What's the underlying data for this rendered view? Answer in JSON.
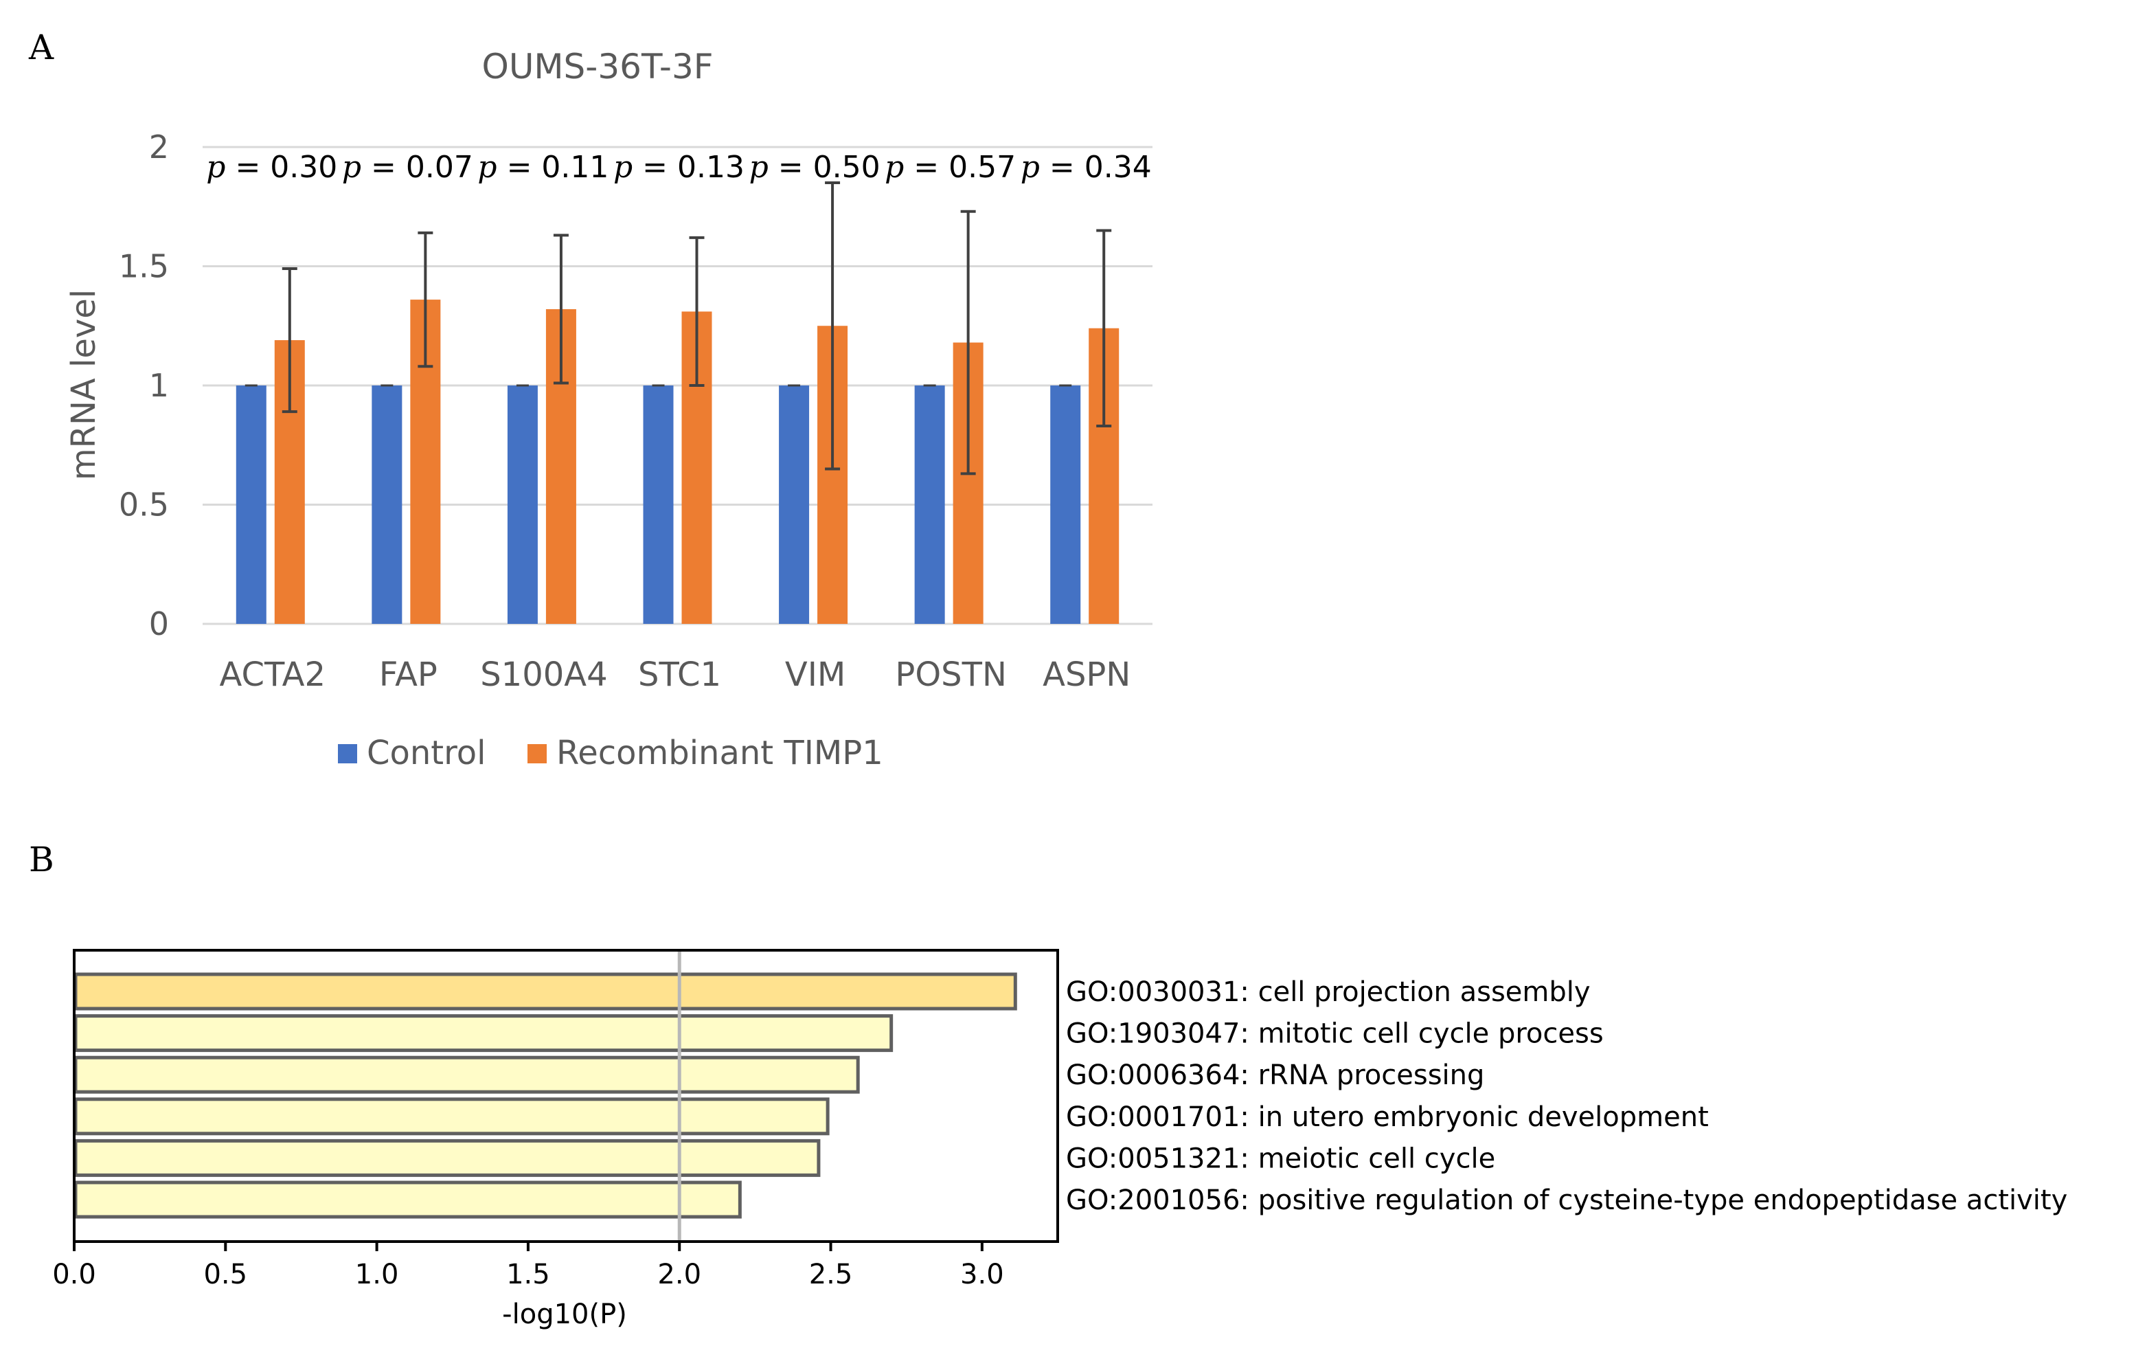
{
  "panels": {
    "a_label": "A",
    "b_label": "B"
  },
  "colors": {
    "control": "#4472C4",
    "timp1": "#ED7D31",
    "gridline": "#D9D9D9",
    "axis_text": "#595959",
    "errorbar": "#404040",
    "bar_top": "#FFE28F",
    "bar_other": "#FFFCC8",
    "bar_stroke": "#606060",
    "refline": "#B8B8B8"
  },
  "chart_data": [
    {
      "type": "bar",
      "title": "OUMS-36T-3F",
      "xlabel": "",
      "ylabel": "mRNA level",
      "ylim": [
        0,
        2
      ],
      "yticks": [
        "0",
        "0.5",
        "1",
        "1.5",
        "2"
      ],
      "grid": true,
      "legend_position": "bottom",
      "categories": [
        "ACTA2",
        "FAP",
        "S100A4",
        "STC1",
        "VIM",
        "POSTN",
        "ASPN"
      ],
      "series": [
        {
          "name": "Control",
          "values": [
            1,
            1,
            1,
            1,
            1,
            1,
            1
          ]
        },
        {
          "name": "Recombinant TIMP1",
          "values": [
            1.19,
            1.36,
            1.32,
            1.31,
            1.25,
            1.18,
            1.24
          ],
          "error": [
            0.3,
            0.28,
            0.31,
            0.31,
            0.6,
            0.55,
            0.41
          ]
        }
      ],
      "pvalues": [
        {
          "p": "p",
          "eq": " = 0.30"
        },
        {
          "p": "p",
          "eq": " = 0.07"
        },
        {
          "p": "p",
          "eq": " = 0.11"
        },
        {
          "p": "p",
          "eq": " = 0.13"
        },
        {
          "p": "p",
          "eq": " = 0.50"
        },
        {
          "p": "p",
          "eq": " = 0.57"
        },
        {
          "p": "p",
          "eq": " = 0.34"
        }
      ]
    },
    {
      "type": "bar",
      "orientation": "horizontal",
      "title": "",
      "xlabel": "-log10(P)",
      "ylabel": "",
      "xlim": [
        0,
        3.25
      ],
      "xticks": [
        "0.0",
        "0.5",
        "1.0",
        "1.5",
        "2.0",
        "2.5",
        "3.0"
      ],
      "reference_line": 2.0,
      "categories": [
        "GO:0030031: cell projection assembly",
        "GO:1903047: mitotic cell cycle process",
        "GO:0006364: rRNA processing",
        "GO:0001701: in utero embryonic development",
        "GO:0051321: meiotic cell cycle",
        "GO:2001056: positive regulation of cysteine-type endopeptidase activity"
      ],
      "values": [
        3.11,
        2.7,
        2.59,
        2.49,
        2.46,
        2.2
      ]
    }
  ]
}
